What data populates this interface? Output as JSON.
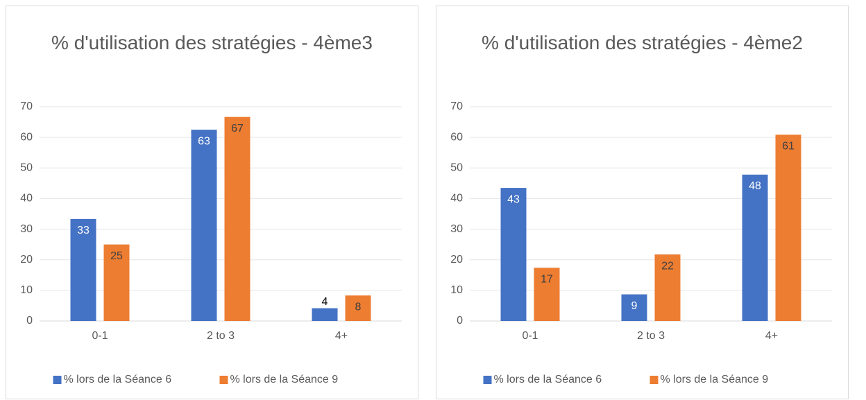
{
  "chart_data": [
    {
      "type": "bar",
      "title": "% d'utilisation des stratégies - 4ème3",
      "categories": [
        "0-1",
        "2 to 3",
        "4+"
      ],
      "series": [
        {
          "name": "% lors de la Séance 6",
          "color": "#4472c4",
          "values": [
            33.33,
            62.5,
            4.17
          ],
          "value_labels": [
            "33",
            "63",
            "4"
          ]
        },
        {
          "name": "% lors de la Séance 9",
          "color": "#ed7d31",
          "values": [
            25,
            66.67,
            8.33
          ],
          "value_labels": [
            "25",
            "67",
            "8"
          ]
        }
      ],
      "ylim": [
        0,
        70
      ],
      "yticks": [
        0,
        10,
        20,
        30,
        40,
        50,
        60,
        70
      ],
      "grid": true,
      "legend": "bottom"
    },
    {
      "type": "bar",
      "title": "% d'utilisation des stratégies - 4ème2",
      "categories": [
        "0-1",
        "2 to 3",
        "4+"
      ],
      "series": [
        {
          "name": "% lors de la Séance 6",
          "color": "#4472c4",
          "values": [
            43.48,
            8.7,
            47.83
          ],
          "value_labels": [
            "43",
            "9",
            "48"
          ]
        },
        {
          "name": "% lors de la Séance 9",
          "color": "#ed7d31",
          "values": [
            17.39,
            21.74,
            60.87
          ],
          "value_labels": [
            "17",
            "22",
            "61"
          ]
        }
      ],
      "ylim": [
        0,
        70
      ],
      "yticks": [
        0,
        10,
        20,
        30,
        40,
        50,
        60,
        70
      ],
      "grid": true,
      "legend": "bottom"
    }
  ]
}
